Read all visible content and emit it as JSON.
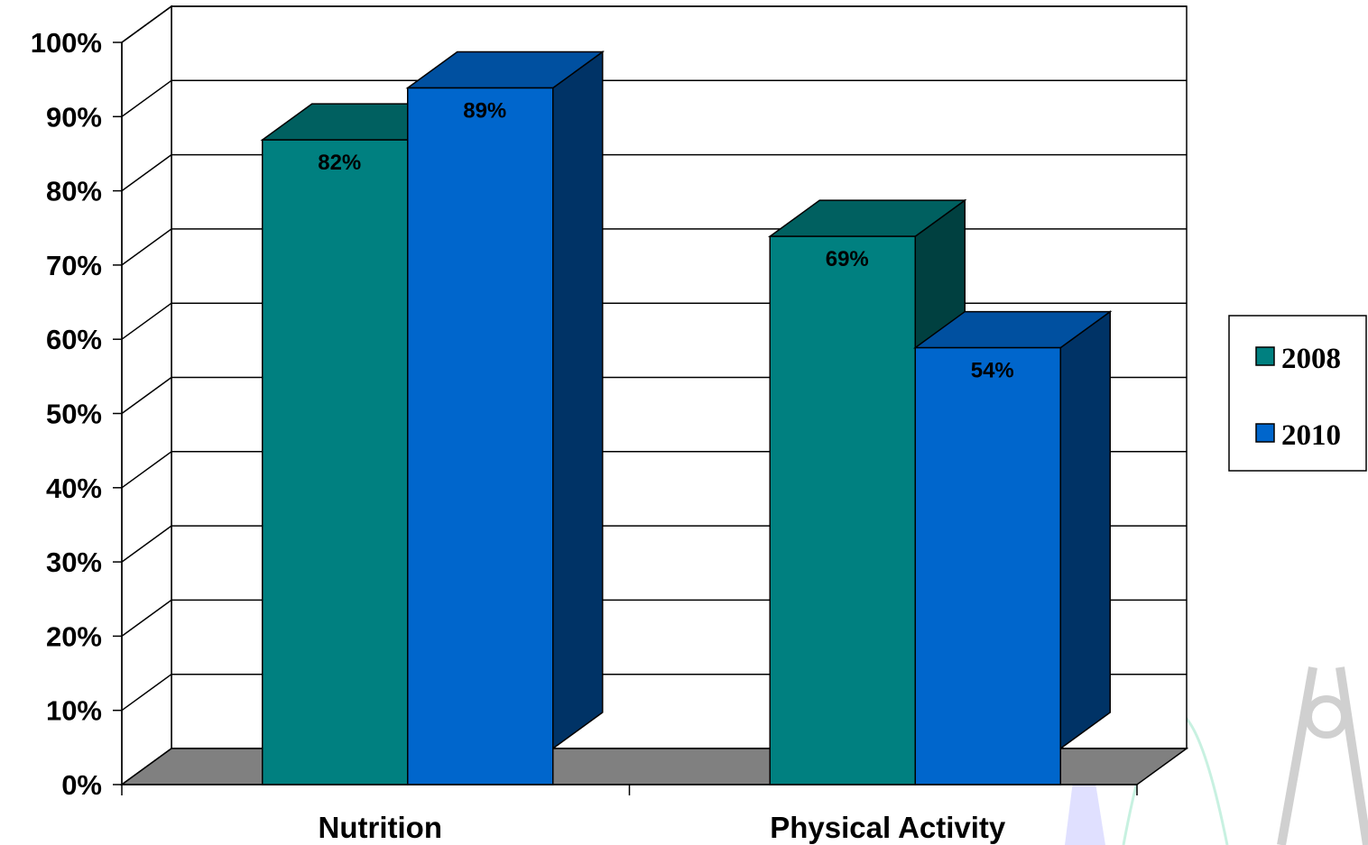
{
  "chart_data": {
    "type": "bar",
    "title": "",
    "xlabel": "",
    "ylabel": "",
    "categories": [
      "Nutrition",
      "Physical Activity"
    ],
    "series": [
      {
        "name": "2008",
        "values": [
          82,
          69
        ],
        "labels": [
          "82%",
          "69%"
        ],
        "color": "#008080"
      },
      {
        "name": "2010",
        "values": [
          89,
          54
        ],
        "labels": [
          "89%",
          "54%"
        ],
        "color": "#0066CC"
      }
    ],
    "ylim": [
      0,
      100
    ],
    "yticks": [
      0,
      10,
      20,
      30,
      40,
      50,
      60,
      70,
      80,
      90,
      100
    ],
    "ytick_labels": [
      "0%",
      "10%",
      "20%",
      "30%",
      "40%",
      "50%",
      "60%",
      "70%",
      "80%",
      "90%",
      "100%"
    ],
    "grid": true,
    "legend_position": "right",
    "style": "3d-clustered-column",
    "colors": {
      "floor": "#808080",
      "teal_top": "#006060",
      "teal_side": "#004040",
      "blue_top": "#0050A0",
      "blue_side": "#003366"
    }
  }
}
